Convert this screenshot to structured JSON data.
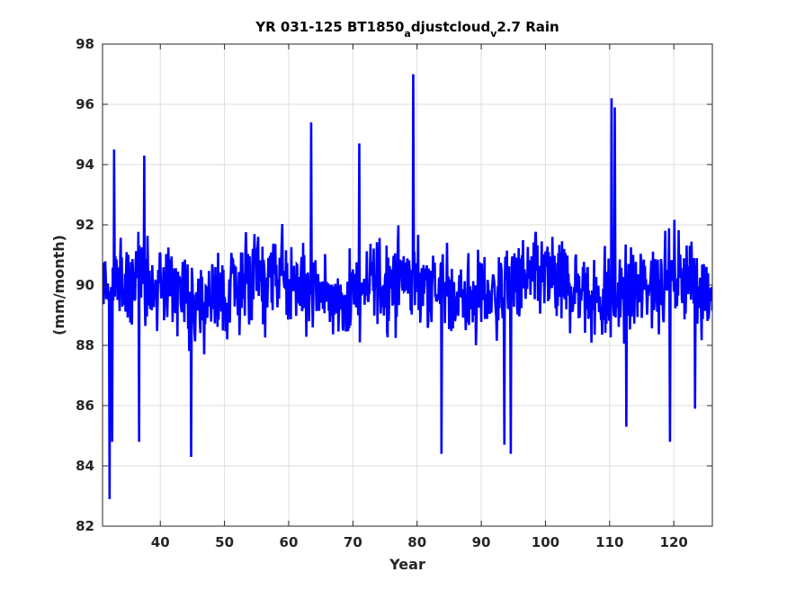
{
  "chart_data": {
    "type": "line",
    "title_parts": [
      "YR 031-125 BT1850",
      "a",
      "djustcloud",
      "v",
      "2.7 Rain"
    ],
    "xlabel": "Year",
    "ylabel": "(mm/month)",
    "xlim": [
      31,
      126
    ],
    "ylim": [
      82,
      98
    ],
    "xticks": [
      40,
      50,
      60,
      70,
      80,
      90,
      100,
      110,
      120
    ],
    "yticks": [
      82,
      84,
      86,
      88,
      90,
      92,
      94,
      96,
      98
    ],
    "grid": true,
    "line_color": "#0000ff",
    "series": [
      {
        "x_start": 31,
        "x_end": 126,
        "points_per_year": 12,
        "mean": 89.9,
        "notable_points": [
          {
            "x": 32.1,
            "y": 82.9
          },
          {
            "x": 32.5,
            "y": 84.8
          },
          {
            "x": 32.8,
            "y": 94.5
          },
          {
            "x": 36.7,
            "y": 84.8
          },
          {
            "x": 37.5,
            "y": 94.3
          },
          {
            "x": 44.8,
            "y": 84.3
          },
          {
            "x": 63.5,
            "y": 95.4
          },
          {
            "x": 71.0,
            "y": 94.7
          },
          {
            "x": 79.4,
            "y": 97.0
          },
          {
            "x": 83.8,
            "y": 84.4
          },
          {
            "x": 93.6,
            "y": 84.7
          },
          {
            "x": 94.6,
            "y": 84.4
          },
          {
            "x": 110.3,
            "y": 96.2
          },
          {
            "x": 110.8,
            "y": 95.9
          },
          {
            "x": 112.6,
            "y": 85.3
          },
          {
            "x": 119.4,
            "y": 84.8
          },
          {
            "x": 123.3,
            "y": 85.9
          }
        ]
      }
    ]
  }
}
